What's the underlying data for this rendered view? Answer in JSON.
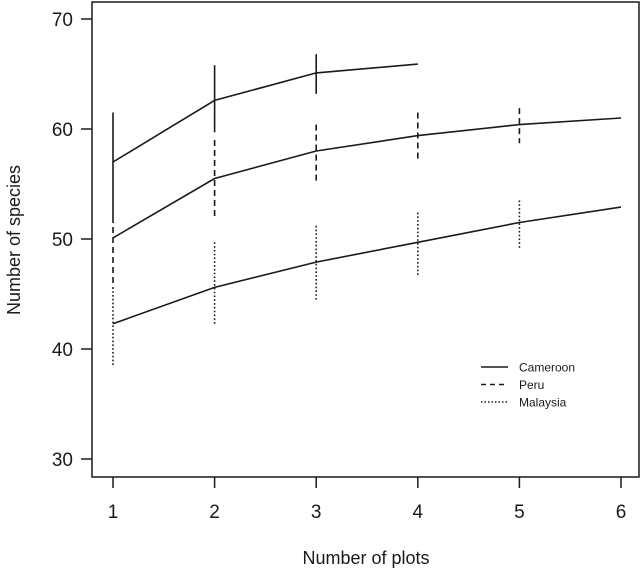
{
  "chart_data": {
    "type": "line",
    "title": "",
    "xlabel": "Number of plots",
    "ylabel": "Number of species",
    "xlim": [
      1,
      6
    ],
    "ylim": [
      30,
      70
    ],
    "x_ticks": [
      "1",
      "2",
      "3",
      "4",
      "5",
      "6"
    ],
    "y_ticks": [
      "30",
      "40",
      "50",
      "60",
      "70"
    ],
    "grid": false,
    "legend_position": "lower right",
    "series": [
      {
        "name": "Cameroon",
        "line_style": "solid",
        "x": [
          1,
          2,
          3,
          4
        ],
        "values": [
          57.0,
          62.6,
          65.1,
          65.9
        ],
        "error_low": [
          52.0,
          59.7,
          63.2,
          null
        ],
        "error_high": [
          61.5,
          65.8,
          66.8,
          null
        ]
      },
      {
        "name": "Peru",
        "line_style": "dashed",
        "x": [
          1,
          2,
          3,
          4,
          5,
          6
        ],
        "values": [
          50.1,
          55.5,
          58.0,
          59.4,
          60.4,
          61.0
        ],
        "error_low": [
          45.6,
          52.0,
          55.2,
          57.2,
          58.7,
          null
        ],
        "error_high": [
          52.0,
          59.0,
          60.4,
          61.5,
          61.9,
          null
        ]
      },
      {
        "name": "Malaysia",
        "line_style": "dotted",
        "x": [
          1,
          2,
          3,
          4,
          5,
          6
        ],
        "values": [
          42.3,
          45.6,
          47.9,
          49.7,
          51.5,
          52.9
        ],
        "error_low": [
          38.5,
          42.2,
          44.5,
          46.7,
          49.2,
          null
        ],
        "error_high": [
          45.6,
          49.7,
          51.2,
          52.4,
          53.5,
          null
        ]
      }
    ]
  },
  "colors": {
    "line": "#1a1a1a",
    "axis": "#1a1a1a",
    "background": "#ffffff"
  }
}
